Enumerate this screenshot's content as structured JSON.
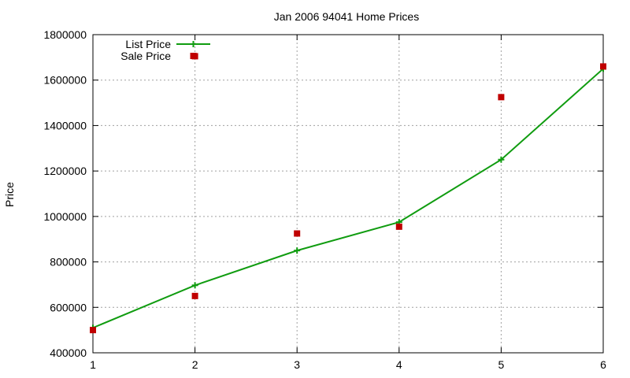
{
  "chart_data": {
    "type": "line",
    "title": "Jan 2006 94041 Home Prices",
    "xlabel": "",
    "ylabel": "Price",
    "x": [
      1,
      2,
      3,
      4,
      5,
      6
    ],
    "xlim": [
      1,
      6
    ],
    "ylim": [
      400000,
      1800000
    ],
    "x_ticks": [
      "1",
      "2",
      "3",
      "4",
      "5",
      "6"
    ],
    "y_ticks": [
      "400000",
      "600000",
      "800000",
      "1000000",
      "1200000",
      "1400000",
      "1600000",
      "1800000"
    ],
    "grid": true,
    "legend_position": "top-left",
    "series": [
      {
        "name": "List Price",
        "style": "line with plus markers",
        "color": "#109c10",
        "values": [
          510000,
          697000,
          850000,
          975000,
          1250000,
          1650000
        ]
      },
      {
        "name": "Sale Price",
        "style": "square markers",
        "color": "#c00000",
        "values": [
          500000,
          650000,
          925000,
          955000,
          1525000,
          1660000
        ]
      }
    ],
    "extra_points": [
      {
        "series": "Sale Price",
        "x": 2,
        "y": 1705000
      }
    ]
  }
}
